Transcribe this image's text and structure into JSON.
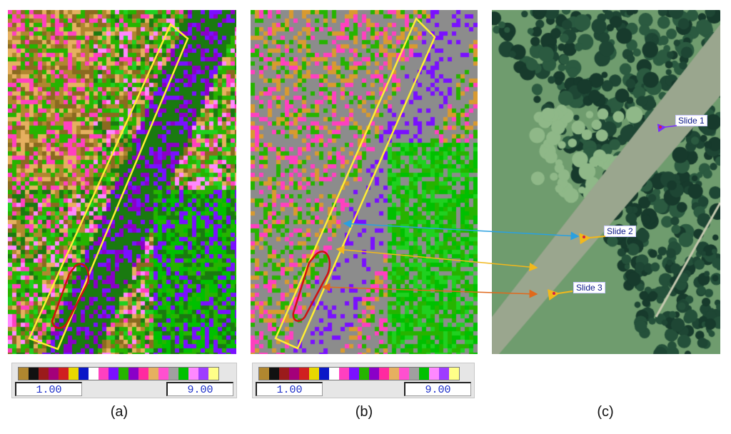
{
  "panels": [
    {
      "id": "a",
      "caption": "(a)",
      "legend": {
        "min": "1.00",
        "max": "9.00"
      }
    },
    {
      "id": "b",
      "caption": "(b)",
      "legend": {
        "min": "1.00",
        "max": "9.00"
      }
    },
    {
      "id": "c",
      "caption": "(c)"
    }
  ],
  "slides": [
    {
      "label": "Slide 1"
    },
    {
      "label": "Slide 2"
    },
    {
      "label": "Slide 3"
    }
  ],
  "legend_colors": [
    "#b0872f",
    "#111111",
    "#9b1b1b",
    "#a4007a",
    "#d02020",
    "#e8d800",
    "#0b18c8",
    "#ffffff",
    "#ff40c0",
    "#7a10ff",
    "#26b400",
    "#8a00c8",
    "#ff2aa0",
    "#e6b060",
    "#ff50d0",
    "#a0a0a0",
    "#00c000",
    "#ff88ff",
    "#9e3cff",
    "#ffff88"
  ],
  "colors": {
    "boundary_yellow": "#ffee33",
    "boundary_red": "#d01010",
    "arrow_blue": "#2aa0e0",
    "arrow_yellow": "#f2b81c",
    "arrow_orange": "#e0691c"
  }
}
